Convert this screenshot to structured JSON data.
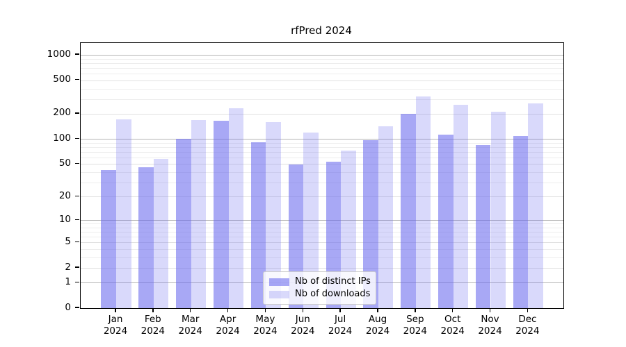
{
  "chart_data": {
    "type": "bar",
    "title": "rfPred 2024",
    "categories": [
      "Jan",
      "Feb",
      "Mar",
      "Apr",
      "May",
      "Jun",
      "Jul",
      "Aug",
      "Sep",
      "Oct",
      "Nov",
      "Dec"
    ],
    "x_tick_year": "2024",
    "series": [
      {
        "name": "Nb of distinct IPs",
        "color": "rgba(102,102,238,0.57)",
        "values": [
          42,
          46,
          100,
          165,
          92,
          49,
          53,
          96,
          200,
          113,
          85,
          108
        ]
      },
      {
        "name": "Nb of downloads",
        "color": "rgba(102,102,238,0.25)",
        "values": [
          172,
          58,
          167,
          232,
          160,
          120,
          72,
          143,
          320,
          256,
          211,
          265
        ]
      }
    ],
    "y_axis": {
      "scale": "log10(value+1)",
      "ticks": [
        1000,
        500,
        200,
        100,
        50,
        20,
        10,
        5,
        2,
        1,
        0
      ],
      "ylim_top": 1400
    },
    "grid": {
      "major_values": [
        1,
        10,
        100,
        1000
      ],
      "labeled_values": [
        2,
        5,
        20,
        50,
        200,
        500
      ],
      "minor_values": [
        3,
        4,
        6,
        7,
        8,
        9,
        30,
        40,
        60,
        70,
        80,
        90,
        300,
        400,
        600,
        700,
        800,
        900
      ]
    },
    "legend": {
      "position": "lower center"
    }
  },
  "colors": {
    "bar_dark": "#a8a8f3",
    "bar_light": "#d9d9fa",
    "grid_major": "#b4b4b4",
    "grid_labeled": "#e0e0e0",
    "grid_minor": "#ededed",
    "axis": "#000000",
    "legend_border": "#cccccc"
  }
}
